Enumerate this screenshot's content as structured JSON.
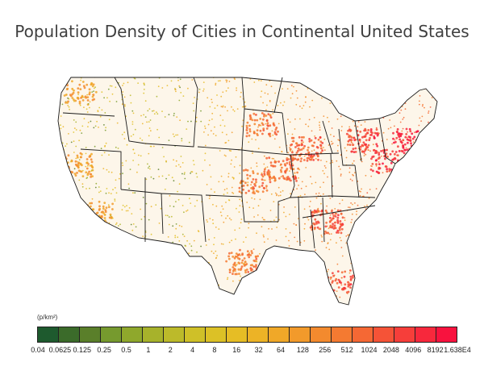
{
  "title": "Population Density of Cities in Continental United States",
  "legend": {
    "unit": "(p/km²)",
    "ticks": [
      "0.04",
      "0.0625",
      "0.125",
      "0.25",
      "0.5",
      "1",
      "2",
      "4",
      "8",
      "16",
      "32",
      "64",
      "128",
      "256",
      "512",
      "1024",
      "2048",
      "4096",
      "8192",
      "1.638E4"
    ],
    "colors": [
      "#1e5a2e",
      "#3b6b2a",
      "#5a7f2a",
      "#769a2e",
      "#8fa82c",
      "#a7b22b",
      "#bcba2a",
      "#cfc028",
      "#dcc126",
      "#e6bd25",
      "#ecb326",
      "#f0a828",
      "#f29a2b",
      "#f38a2e",
      "#f47a31",
      "#f56834",
      "#f55337",
      "#f63e3a",
      "#f7283c",
      "#f8123e"
    ]
  },
  "map": {
    "land_color": "#fdf6ea",
    "border_color": "#1a1a1a"
  }
}
